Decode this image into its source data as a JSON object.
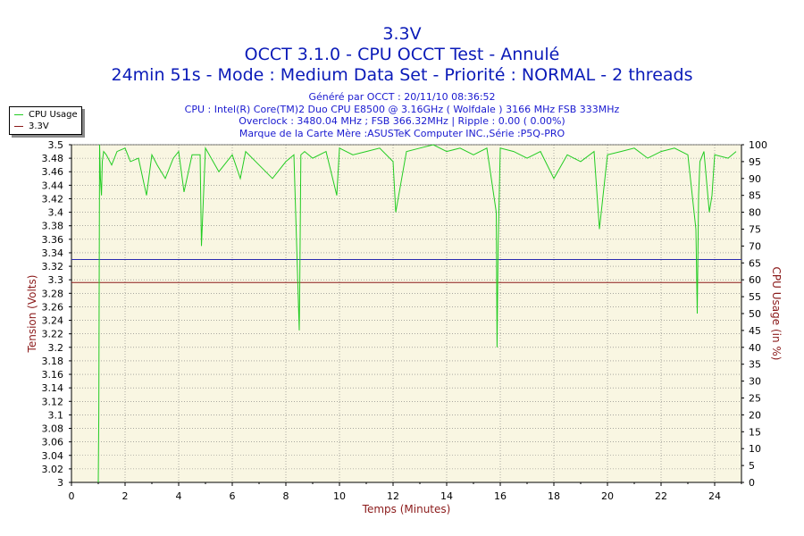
{
  "header": {
    "title": "3.3V",
    "subtitle": "OCCT 3.1.0 - CPU OCCT Test - Annulé",
    "mode_line": "24min 51s - Mode : Medium Data Set - Priorité : NORMAL - 2 threads"
  },
  "info": {
    "generated": "Généré par OCCT : 20/11/10 08:36:52",
    "cpu": "CPU : Intel(R) Core(TM)2 Duo CPU E8500 @ 3.16GHz ( Wolfdale ) 3166 MHz FSB 333MHz",
    "overclock": "Overclock : 3480.04 MHz ; FSB 366.32MHz | Ripple : 0.00 ( 0.00%)",
    "motherboard": "Marque de la Carte Mère :ASUSTeK Computer INC.,Série :P5Q-PRO"
  },
  "legend": [
    {
      "name": "CPU Usage",
      "color": "#22cc22"
    },
    {
      "name": "3.3V",
      "color": "#8b1a1a"
    }
  ],
  "chart_data": {
    "type": "line",
    "xlabel": "Temps (Minutes)",
    "ylabel_left": "Tension (Volts)",
    "ylabel_right": "CPU Usage (in %)",
    "xlim": [
      0,
      25
    ],
    "ylim_left": [
      3.0,
      3.5
    ],
    "ylim_right": [
      0,
      100
    ],
    "x_ticks": [
      "0",
      "2",
      "4",
      "6",
      "8",
      "10",
      "12",
      "14",
      "16",
      "18",
      "20",
      "22",
      "24"
    ],
    "y_left_ticks": [
      "3",
      "3.02",
      "3.04",
      "3.06",
      "3.08",
      "3.1",
      "3.12",
      "3.14",
      "3.16",
      "3.18",
      "3.2",
      "3.22",
      "3.24",
      "3.26",
      "3.28",
      "3.3",
      "3.32",
      "3.34",
      "3.36",
      "3.38",
      "3.4",
      "3.42",
      "3.44",
      "3.46",
      "3.48",
      "3.5"
    ],
    "y_right_ticks": [
      "0",
      "5",
      "10",
      "15",
      "20",
      "25",
      "30",
      "35",
      "40",
      "45",
      "50",
      "55",
      "60",
      "65",
      "70",
      "75",
      "80",
      "85",
      "90",
      "95",
      "100"
    ],
    "grid": true,
    "legend_position": "top-left",
    "colors": {
      "background": "#f9f6e2",
      "grid": "#7a7a7a",
      "cpu": "#22cc22",
      "voltage": "#8b1a1a",
      "reference": "#2b2bb0",
      "axis_label": "#8b1a1a"
    },
    "series": [
      {
        "name": "3.3V",
        "axis": "left",
        "x": [
          0,
          25
        ],
        "y": [
          3.296,
          3.296
        ]
      },
      {
        "name": "CPU Usage",
        "axis": "right",
        "x": [
          1.0,
          1.02,
          1.05,
          1.08,
          1.12,
          1.15,
          1.2,
          1.3,
          1.5,
          1.7,
          2.0,
          2.2,
          2.5,
          2.8,
          3.0,
          3.2,
          3.5,
          3.8,
          4.0,
          4.2,
          4.5,
          4.8,
          4.85,
          5.0,
          5.5,
          6.0,
          6.3,
          6.5,
          7.0,
          7.5,
          8.0,
          8.3,
          8.48,
          8.5,
          8.52,
          8.56,
          8.7,
          9.0,
          9.5,
          9.9,
          10.0,
          10.5,
          11.0,
          11.5,
          12.0,
          12.1,
          12.5,
          13.0,
          13.5,
          14.0,
          14.5,
          15.0,
          15.5,
          15.85,
          15.88,
          15.92,
          16.0,
          16.5,
          17.0,
          17.5,
          18.0,
          18.5,
          19.0,
          19.5,
          19.7,
          20.0,
          20.5,
          21.0,
          21.5,
          22.0,
          22.5,
          23.0,
          23.3,
          23.35,
          23.4,
          23.45,
          23.6,
          23.8,
          23.9,
          24.0,
          24.5,
          24.8
        ],
        "y": [
          0,
          20,
          100,
          90,
          85,
          95,
          98,
          97,
          94,
          98,
          99,
          95,
          96,
          85,
          97,
          94,
          90,
          96,
          98,
          86,
          97,
          97,
          70,
          99,
          92,
          97,
          90,
          98,
          94,
          90,
          95,
          97,
          50,
          45,
          60,
          97,
          98,
          96,
          98,
          85,
          99,
          97,
          98,
          99,
          95,
          80,
          98,
          99,
          100,
          98,
          99,
          97,
          99,
          80,
          40,
          70,
          99,
          98,
          96,
          98,
          90,
          97,
          95,
          98,
          75,
          97,
          98,
          99,
          96,
          98,
          99,
          97,
          75,
          50,
          85,
          95,
          98,
          80,
          85,
          97,
          96,
          98
        ]
      }
    ],
    "reference_line": {
      "axis": "left",
      "y": 3.33
    }
  }
}
